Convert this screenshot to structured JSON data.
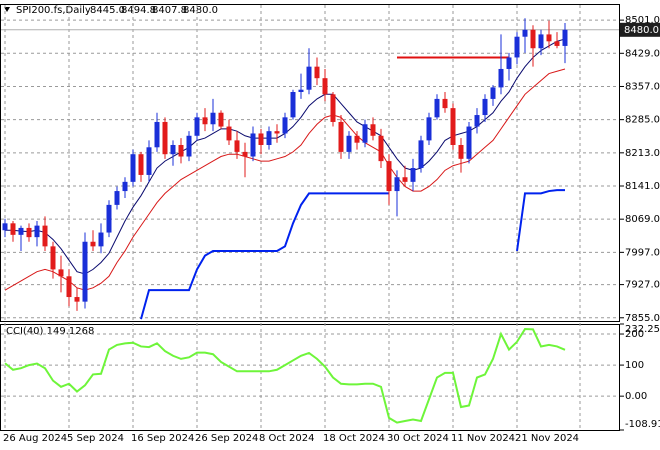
{
  "chart_data": [
    {
      "type": "candlestick",
      "title": "SPI200.fs,Daily",
      "header_values": [
        {
          "value": 8445,
          "label": "8445.0"
        },
        {
          "value": 8494.8,
          "label": "8494.8"
        },
        {
          "value": 8407.8,
          "label": "8407.8"
        },
        {
          "value": 8480,
          "label": "8480.0"
        }
      ],
      "categories": [
        "26 Aug 2024",
        null,
        null,
        null,
        null,
        null,
        null,
        null,
        "5 Sep 2024",
        null,
        null,
        null,
        null,
        null,
        null,
        null,
        "16 Sep 2024",
        null,
        null,
        null,
        null,
        null,
        null,
        null,
        "26 Sep 2024",
        null,
        null,
        null,
        null,
        null,
        null,
        null,
        "8 Oct 2024",
        null,
        null,
        null,
        null,
        null,
        null,
        null,
        "18 Oct 2024",
        null,
        null,
        null,
        null,
        null,
        null,
        null,
        "30 Oct 2024",
        null,
        null,
        null,
        null,
        null,
        null,
        null,
        "11 Nov 2024",
        null,
        null,
        null,
        null,
        null,
        null,
        null,
        "21 Nov 2024",
        null,
        null,
        null,
        null,
        null,
        null
      ],
      "open": [
        8045,
        8060,
        8035,
        8050,
        8030,
        8055,
        8010,
        7960,
        7945,
        7900,
        7890,
        8020,
        8010,
        8040,
        8100,
        8130,
        8150,
        8210,
        8165,
        8225,
        8280,
        8210,
        8230,
        8205,
        8250,
        8290,
        8275,
        8300,
        8270,
        8240,
        8215,
        8205,
        8255,
        8230,
        8260,
        8255,
        8290,
        8345,
        8350,
        8400,
        8375,
        8340,
        8280,
        8215,
        8250,
        8235,
        8275,
        8250,
        8195,
        8130,
        8160,
        8150,
        8180,
        8240,
        8290,
        8330,
        8310,
        8230,
        8200,
        8270,
        8295,
        8330,
        8355,
        8395,
        8420,
        8465,
        8480,
        8440,
        8470,
        8455,
        8445
      ],
      "high": [
        8070,
        8065,
        8055,
        8060,
        8065,
        8075,
        8020,
        7990,
        7960,
        7920,
        8040,
        8045,
        8060,
        8110,
        8140,
        8160,
        8220,
        8215,
        8240,
        8300,
        8290,
        8240,
        8245,
        8260,
        8300,
        8310,
        8330,
        8305,
        8285,
        8260,
        8235,
        8270,
        8265,
        8270,
        8275,
        8300,
        8350,
        8385,
        8440,
        8420,
        8395,
        8345,
        8295,
        8260,
        8260,
        8285,
        8290,
        8265,
        8210,
        8175,
        8185,
        8200,
        8250,
        8300,
        8340,
        8345,
        8320,
        8245,
        8280,
        8310,
        8340,
        8360,
        8470,
        8430,
        8475,
        8505,
        8490,
        8480,
        8500,
        8475,
        8494.8
      ],
      "low": [
        8030,
        8020,
        8000,
        8020,
        8010,
        8000,
        7940,
        7910,
        7880,
        7870,
        7875,
        8000,
        7995,
        8030,
        8090,
        8115,
        8140,
        8150,
        8150,
        8215,
        8200,
        8185,
        8190,
        8195,
        8240,
        8260,
        8260,
        8265,
        8230,
        8200,
        8160,
        8195,
        8210,
        8220,
        8235,
        8245,
        8285,
        8330,
        8340,
        8360,
        8325,
        8270,
        8200,
        8200,
        8220,
        8225,
        8240,
        8180,
        8100,
        8075,
        8140,
        8130,
        8170,
        8230,
        8285,
        8300,
        8220,
        8170,
        8190,
        8255,
        8280,
        8315,
        8340,
        8370,
        8405,
        8430,
        8400,
        8425,
        8440,
        8440,
        8407.8
      ],
      "close": [
        8060,
        8035,
        8050,
        8030,
        8055,
        8010,
        7960,
        7945,
        7900,
        7890,
        8020,
        8010,
        8040,
        8100,
        8130,
        8150,
        8210,
        8165,
        8225,
        8280,
        8210,
        8230,
        8205,
        8250,
        8290,
        8275,
        8300,
        8270,
        8240,
        8215,
        8205,
        8255,
        8230,
        8260,
        8255,
        8290,
        8345,
        8350,
        8400,
        8375,
        8340,
        8280,
        8215,
        8250,
        8235,
        8275,
        8250,
        8195,
        8130,
        8160,
        8150,
        8180,
        8240,
        8290,
        8330,
        8310,
        8230,
        8200,
        8270,
        8295,
        8330,
        8355,
        8395,
        8420,
        8465,
        8480,
        8440,
        8470,
        8455,
        8445,
        8480
      ],
      "up_color": "#1a2fd8",
      "down_color": "#e21b1b",
      "overlays": [
        {
          "color": "#0a0a6e",
          "values": [
            8045,
            8045,
            8043,
            8042,
            8045,
            8040,
            8025,
            8005,
            7980,
            7955,
            7950,
            7960,
            7975,
            7995,
            8030,
            8065,
            8095,
            8120,
            8150,
            8180,
            8195,
            8205,
            8215,
            8225,
            8240,
            8245,
            8255,
            8265,
            8265,
            8260,
            8250,
            8245,
            8245,
            8245,
            8245,
            8255,
            8270,
            8290,
            8315,
            8330,
            8340,
            8340,
            8320,
            8300,
            8280,
            8270,
            8260,
            8250,
            8225,
            8200,
            8180,
            8175,
            8180,
            8195,
            8215,
            8240,
            8250,
            8255,
            8260,
            8270,
            8285,
            8300,
            8325,
            8345,
            8375,
            8400,
            8420,
            8435,
            8445,
            8455,
            8460
          ]
        },
        {
          "color": "#d81818",
          "values": [
            7915,
            7925,
            7935,
            7945,
            7955,
            7960,
            7955,
            7945,
            7935,
            7920,
            7915,
            7920,
            7930,
            7945,
            7975,
            8000,
            8030,
            8055,
            8080,
            8105,
            8125,
            8140,
            8155,
            8165,
            8175,
            8185,
            8195,
            8205,
            8210,
            8210,
            8205,
            8200,
            8195,
            8195,
            8200,
            8205,
            8215,
            8230,
            8255,
            8275,
            8290,
            8295,
            8290,
            8270,
            8250,
            8235,
            8225,
            8215,
            8185,
            8160,
            8140,
            8130,
            8130,
            8140,
            8155,
            8175,
            8185,
            8190,
            8195,
            8210,
            8225,
            8240,
            8265,
            8290,
            8315,
            8340,
            8355,
            8370,
            8385,
            8390,
            8395
          ]
        },
        {
          "color": "#0022ee",
          "values": [
            null,
            null,
            null,
            null,
            null,
            null,
            null,
            null,
            null,
            null,
            null,
            null,
            null,
            null,
            null,
            null,
            null,
            7852,
            7915,
            7915,
            7915,
            7915,
            7915,
            7915,
            7960,
            7990,
            8000,
            8000,
            8000,
            8000,
            8000,
            8000,
            8000,
            8000,
            8000,
            8010,
            8060,
            8100,
            8125,
            8125,
            8125,
            8125,
            8125,
            8125,
            8125,
            8125,
            8125,
            8125,
            8125,
            null,
            null,
            null,
            null,
            null,
            null,
            null,
            null,
            null,
            null,
            null,
            null,
            null,
            null,
            null,
            8000,
            8125,
            8125,
            8125,
            8130,
            8132,
            8132
          ]
        },
        {
          "color": "#e01010",
          "values": [
            null,
            null,
            null,
            null,
            null,
            null,
            null,
            null,
            null,
            null,
            null,
            null,
            null,
            null,
            null,
            null,
            null,
            null,
            null,
            null,
            null,
            null,
            null,
            null,
            null,
            null,
            null,
            null,
            null,
            null,
            null,
            null,
            null,
            null,
            null,
            null,
            null,
            null,
            null,
            null,
            null,
            null,
            null,
            null,
            null,
            null,
            null,
            null,
            null,
            8420,
            8420,
            8420,
            8420,
            8420,
            8420,
            8420,
            8420,
            8420,
            8420,
            8420,
            8420,
            8420,
            8420,
            8420,
            null,
            null,
            null,
            null,
            null,
            null,
            null,
            null
          ]
        }
      ],
      "current_price": {
        "value": 8480,
        "label": "8480.0"
      },
      "ylim": [
        7848,
        8536
      ],
      "yticks": [
        {
          "value": 8501,
          "label": "8501.0"
        },
        {
          "value": 8429,
          "label": "8429.0"
        },
        {
          "value": 8357,
          "label": "8357.0"
        },
        {
          "value": 8285,
          "label": "8285.0"
        },
        {
          "value": 8213,
          "label": "8213.0"
        },
        {
          "value": 8141,
          "label": "8141.0"
        },
        {
          "value": 8069,
          "label": "8069.0"
        },
        {
          "value": 7997,
          "label": "7997.0"
        },
        {
          "value": 7927,
          "label": "7927.0"
        },
        {
          "value": 7855,
          "label": "7855.0"
        }
      ],
      "grid": true
    },
    {
      "type": "line",
      "title": "CCI(40) 149.1268",
      "color": "#6ef53a",
      "values": [
        106,
        85,
        90,
        100,
        105,
        90,
        50,
        30,
        40,
        15,
        35,
        70,
        72,
        150,
        165,
        170,
        172,
        160,
        158,
        170,
        145,
        130,
        120,
        125,
        140,
        140,
        135,
        110,
        95,
        80,
        80,
        80,
        80,
        80,
        85,
        100,
        115,
        130,
        139,
        120,
        95,
        60,
        40,
        38,
        38,
        40,
        40,
        30,
        -70,
        -85,
        -80,
        -75,
        -80,
        -10,
        60,
        75,
        75,
        -35,
        -30,
        60,
        70,
        120,
        200,
        150,
        175,
        216,
        215,
        160,
        165,
        160,
        149.1268
      ],
      "ylim": [
        -108.916,
        232.2595
      ],
      "yticks": [
        {
          "value": 232.2595,
          "label": "232.2595"
        },
        {
          "value": 200,
          "label": "200"
        },
        100,
        {
          "value": 0,
          "label": "0.00"
        },
        {
          "value": -108.916,
          "label": "-108.916"
        }
      ],
      "grid": true
    }
  ]
}
